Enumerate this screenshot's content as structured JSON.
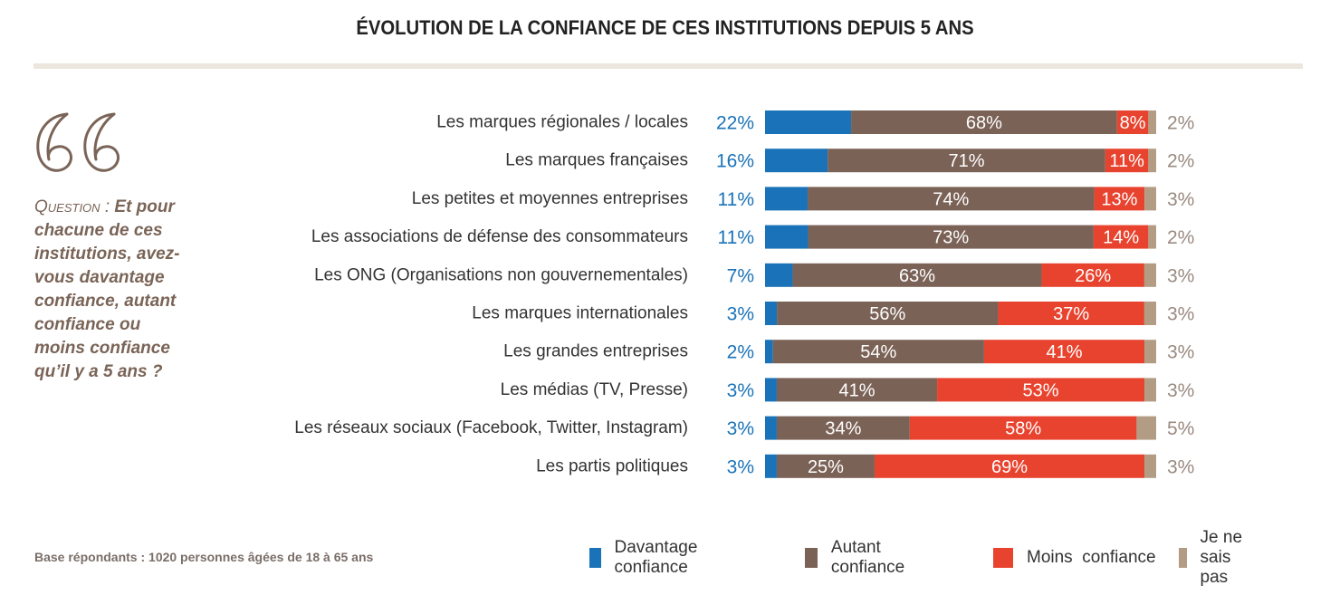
{
  "title": "ÉVOLUTION DE LA CONFIANCE DE CES INSTITUTIONS DEPUIS 5 ANS",
  "question": {
    "label": "Question :",
    "text": "Et pour chacune de ces institutions, avez-vous davantage confiance, autant confiance ou moins confiance qu’il y a 5 ans ?"
  },
  "footnote": "Base répondants : 1020 personnes âgées de 18 à 65 ans",
  "colors": {
    "davantage": "#1a73b8",
    "autant": "#7b6257",
    "moins": "#e8432e",
    "nsp": "#b39c84",
    "label_blue": "#1a73b8",
    "label_grey": "#9a8a80"
  },
  "chart_data": {
    "type": "bar",
    "orientation": "horizontal",
    "stacked": true,
    "unit": "%",
    "categories": [
      "Les marques régionales / locales",
      "Les marques françaises",
      "Les petites et moyennes entreprises",
      "Les associations de défense des consommateurs",
      "Les ONG (Organisations non gouvernementales)",
      "Les marques internationales",
      "Les grandes entreprises",
      "Les médias (TV, Presse)",
      "Les réseaux sociaux (Facebook, Twitter, Instagram)",
      "Les partis politiques"
    ],
    "series": [
      {
        "name": "Davantage confiance",
        "values": [
          22,
          16,
          11,
          11,
          7,
          3,
          2,
          3,
          3,
          3
        ]
      },
      {
        "name": "Autant confiance",
        "values": [
          68,
          71,
          74,
          73,
          63,
          56,
          54,
          41,
          34,
          25
        ]
      },
      {
        "name": "Moins  confiance",
        "values": [
          8,
          11,
          13,
          14,
          26,
          37,
          41,
          53,
          58,
          69
        ]
      },
      {
        "name": "Je ne sais pas",
        "values": [
          2,
          2,
          3,
          2,
          3,
          3,
          3,
          3,
          5,
          3
        ]
      }
    ],
    "legend_position": "bottom-right",
    "grid": false
  }
}
